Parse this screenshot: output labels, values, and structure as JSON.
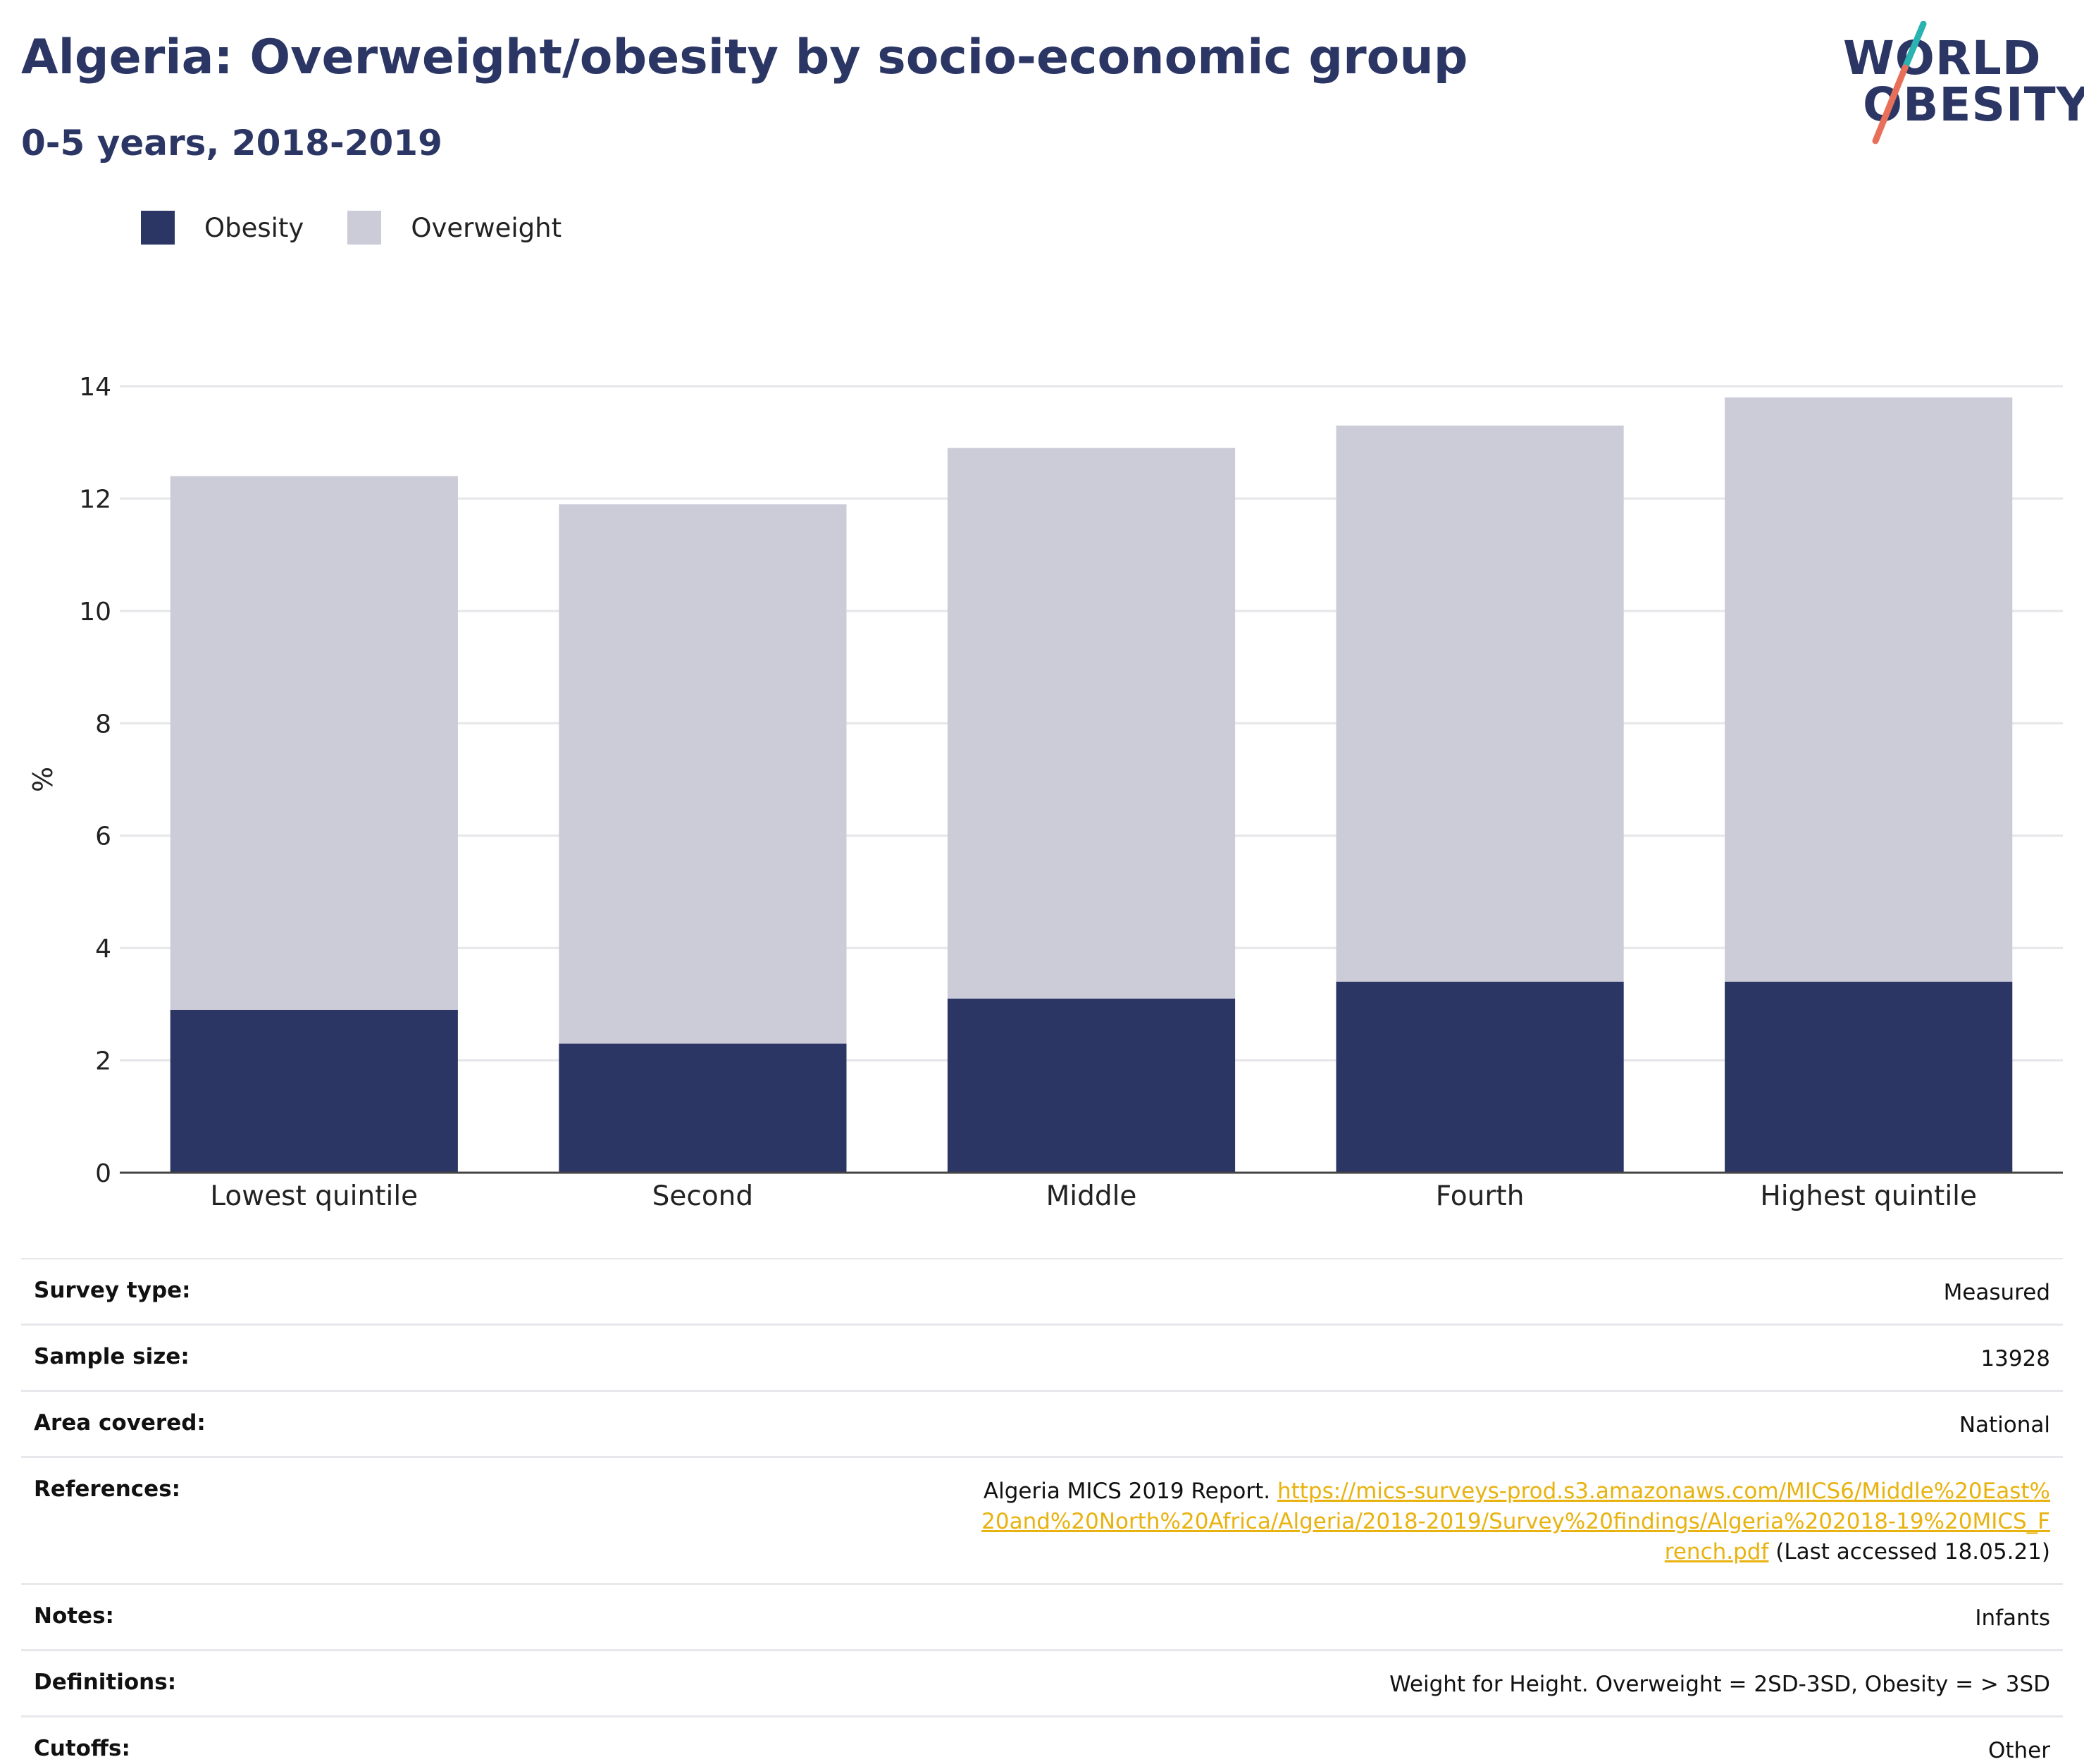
{
  "header": {
    "title": "Algeria: Overweight/obesity by socio-economic group",
    "subtitle": "0-5 years, 2018-2019"
  },
  "logo": {
    "line1": "WORLD",
    "line2": "OBESITY",
    "accent_teal": "#2bb3b1",
    "accent_coral": "#e8705a"
  },
  "legend": {
    "items": [
      {
        "label": "Obesity",
        "color": "#2b3664"
      },
      {
        "label": "Overweight",
        "color": "#cbccd8"
      }
    ]
  },
  "chart_data": {
    "type": "bar",
    "stacked": true,
    "categories": [
      "Lowest quintile",
      "Second",
      "Middle",
      "Fourth",
      "Highest quintile"
    ],
    "series": [
      {
        "name": "Obesity",
        "values": [
          2.9,
          2.3,
          3.1,
          3.4,
          3.4
        ],
        "color": "#2b3664"
      },
      {
        "name": "Overweight",
        "values": [
          9.5,
          9.6,
          9.8,
          9.9,
          10.4
        ],
        "color": "#cbccd8"
      }
    ],
    "ylabel": "%",
    "xlabel": "",
    "ylim": [
      0,
      14
    ],
    "yticks": [
      0,
      2,
      4,
      6,
      8,
      10,
      12,
      14
    ],
    "grid": true,
    "legend_position": "top-left"
  },
  "info": {
    "rows": [
      {
        "key": "Survey type:",
        "value": "Measured"
      },
      {
        "key": "Sample size:",
        "value": "13928"
      },
      {
        "key": "Area covered:",
        "value": "National"
      },
      {
        "key": "References:",
        "value_prefix": "Algeria MICS 2019 Report. ",
        "link": "https://mics-surveys-prod.s3.amazonaws.com/MICS6/Middle%20East%20and%20North%20Africa/Algeria/2018-2019/Survey%20findings/Algeria%202018-19%20MICS_French.pdf",
        "value_suffix": " (Last accessed 18.05.21)"
      },
      {
        "key": "Notes:",
        "value": "Infants"
      },
      {
        "key": "Definitions:",
        "value": "Weight for Height. Overweight = 2SD-3SD, Obesity = > 3SD"
      },
      {
        "key": "Cutoffs:",
        "value": "Other"
      }
    ]
  }
}
